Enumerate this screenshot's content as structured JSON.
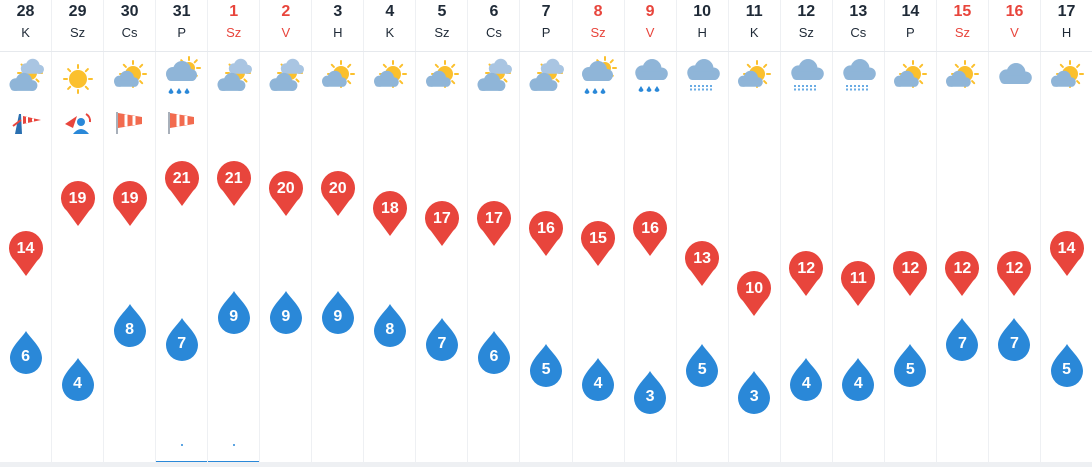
{
  "days": [
    {
      "date": "28",
      "dow": "K",
      "weekend": false,
      "icon": "partly-cloudy",
      "alert": "wind-storm",
      "high": 14,
      "low": 6
    },
    {
      "date": "29",
      "dow": "Sz",
      "weekend": false,
      "icon": "sunny",
      "alert": "wind-storm-person",
      "high": 19,
      "low": 4
    },
    {
      "date": "30",
      "dow": "Cs",
      "weekend": false,
      "icon": "sunny-few-clouds",
      "alert": "wind",
      "high": 19,
      "low": 8
    },
    {
      "date": "31",
      "dow": "P",
      "weekend": false,
      "icon": "rain-shower-sun",
      "alert": "wind",
      "high": 21,
      "low": 7,
      "rain_marker": true
    },
    {
      "date": "1",
      "dow": "Sz",
      "weekend": true,
      "icon": "partly-cloudy",
      "alert": "",
      "high": 21,
      "low": 9,
      "rain_marker": true
    },
    {
      "date": "2",
      "dow": "V",
      "weekend": true,
      "icon": "partly-cloudy",
      "alert": "",
      "high": 20,
      "low": 9
    },
    {
      "date": "3",
      "dow": "H",
      "weekend": false,
      "icon": "sunny-few-clouds",
      "alert": "",
      "high": 20,
      "low": 9
    },
    {
      "date": "4",
      "dow": "K",
      "weekend": false,
      "icon": "sunny-few-clouds",
      "alert": "",
      "high": 18,
      "low": 8
    },
    {
      "date": "5",
      "dow": "Sz",
      "weekend": false,
      "icon": "sunny-few-clouds",
      "alert": "",
      "high": 17,
      "low": 7
    },
    {
      "date": "6",
      "dow": "Cs",
      "weekend": false,
      "icon": "partly-cloudy",
      "alert": "",
      "high": 17,
      "low": 6
    },
    {
      "date": "7",
      "dow": "P",
      "weekend": false,
      "icon": "partly-cloudy",
      "alert": "",
      "high": 16,
      "low": 5
    },
    {
      "date": "8",
      "dow": "Sz",
      "weekend": true,
      "icon": "rain-shower-sun",
      "alert": "",
      "high": 15,
      "low": 4
    },
    {
      "date": "9",
      "dow": "V",
      "weekend": true,
      "icon": "rain",
      "alert": "",
      "high": 16,
      "low": 3
    },
    {
      "date": "10",
      "dow": "H",
      "weekend": false,
      "icon": "drizzle",
      "alert": "",
      "high": 13,
      "low": 5
    },
    {
      "date": "11",
      "dow": "K",
      "weekend": false,
      "icon": "sunny-few-clouds",
      "alert": "",
      "high": 10,
      "low": 3
    },
    {
      "date": "12",
      "dow": "Sz",
      "weekend": false,
      "icon": "drizzle",
      "alert": "",
      "high": 12,
      "low": 4
    },
    {
      "date": "13",
      "dow": "Cs",
      "weekend": false,
      "icon": "drizzle",
      "alert": "",
      "high": 11,
      "low": 4
    },
    {
      "date": "14",
      "dow": "P",
      "weekend": false,
      "icon": "sunny-few-clouds",
      "alert": "",
      "high": 12,
      "low": 5
    },
    {
      "date": "15",
      "dow": "Sz",
      "weekend": true,
      "icon": "sunny-few-clouds",
      "alert": "",
      "high": 12,
      "low": 7
    },
    {
      "date": "16",
      "dow": "V",
      "weekend": true,
      "icon": "cloudy",
      "alert": "",
      "high": 12,
      "low": 7
    },
    {
      "date": "17",
      "dow": "H",
      "weekend": false,
      "icon": "sunny-few-clouds",
      "alert": "",
      "high": 14,
      "low": 5
    }
  ],
  "colors": {
    "high_pin": "#e8453c",
    "low_drop": "#2a88d8",
    "weekend_text": "#e8453c",
    "cloud": "#8fb5d8",
    "sun": "#fbc02d"
  }
}
